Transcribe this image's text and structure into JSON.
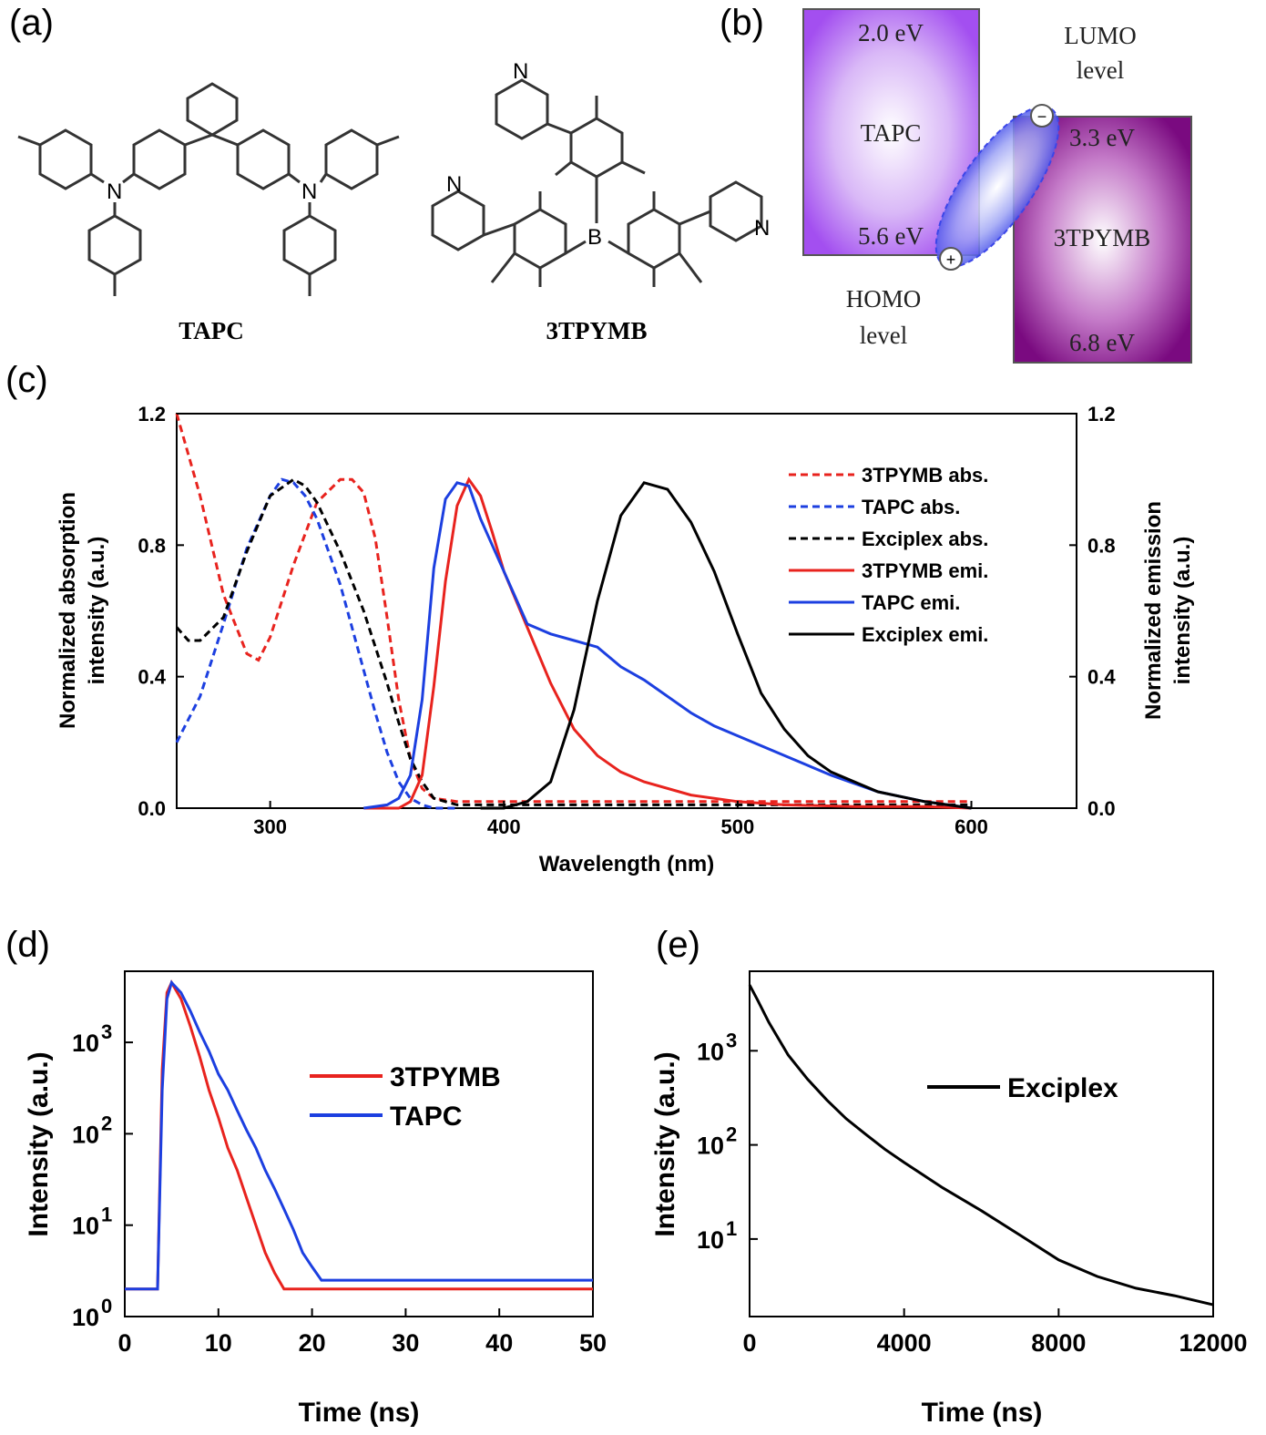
{
  "panels": {
    "a": "(a)",
    "b": "(b)",
    "c": "(c)",
    "d": "(d)",
    "e": "(e)"
  },
  "panel_a": {
    "molecules": [
      "TAPC",
      "3TPYMB"
    ],
    "atoms": {
      "n": "N",
      "b": "B"
    }
  },
  "panel_b": {
    "lumo_label": [
      "LUMO",
      "level"
    ],
    "homo_label": [
      "HOMO",
      "level"
    ],
    "tapc": {
      "name": "TAPC",
      "lumo": "2.0 eV",
      "homo": "5.6 eV"
    },
    "tpymb": {
      "name": "3TPYMB",
      "lumo": "3.3 eV",
      "homo": "6.8 eV"
    },
    "charges": {
      "plus": "+",
      "minus": "−"
    },
    "colors": {
      "tapc": "#a34ff0",
      "tpymb": "#7a0a80",
      "exciplex": "#3b46e8"
    }
  },
  "chart_data": [
    {
      "type": "line",
      "panel": "c",
      "xlabel": "Wavelength (nm)",
      "ylabel_left": [
        "Normalized absorption",
        "intensity (a.u.)"
      ],
      "ylabel_right": [
        "Normalized emission",
        "intensity (a.u.)"
      ],
      "xlim": [
        260,
        645
      ],
      "ylim": [
        0,
        1.2
      ],
      "xticks": [
        "300",
        "400",
        "500",
        "600"
      ],
      "yticks": [
        "0.0",
        "0.4",
        "0.8",
        "1.2"
      ],
      "legend_position": "top-right",
      "series": [
        {
          "name": "3TPYMB abs.",
          "color": "#e8231e",
          "dash": true,
          "x": [
            260,
            270,
            280,
            290,
            295,
            300,
            310,
            320,
            330,
            335,
            340,
            345,
            350,
            355,
            360,
            365,
            370,
            380,
            400,
            500,
            600
          ],
          "y": [
            1.2,
            0.95,
            0.65,
            0.47,
            0.45,
            0.52,
            0.74,
            0.93,
            1.0,
            1.0,
            0.96,
            0.82,
            0.58,
            0.33,
            0.15,
            0.06,
            0.03,
            0.02,
            0.02,
            0.02,
            0.02
          ]
        },
        {
          "name": "TAPC abs.",
          "color": "#1c3fe0",
          "dash": true,
          "x": [
            260,
            270,
            280,
            290,
            300,
            305,
            310,
            315,
            320,
            330,
            340,
            345,
            350,
            355,
            360,
            365,
            370,
            380
          ],
          "y": [
            0.2,
            0.34,
            0.56,
            0.79,
            0.95,
            1.0,
            0.99,
            0.95,
            0.88,
            0.68,
            0.42,
            0.29,
            0.17,
            0.08,
            0.03,
            0.01,
            0.0,
            0.0
          ]
        },
        {
          "name": "Exciplex abs.",
          "color": "#000000",
          "dash": true,
          "x": [
            260,
            265,
            270,
            280,
            290,
            300,
            310,
            315,
            320,
            330,
            340,
            350,
            355,
            360,
            365,
            370,
            380,
            400,
            500,
            600
          ],
          "y": [
            0.55,
            0.51,
            0.51,
            0.58,
            0.78,
            0.95,
            1.0,
            0.98,
            0.93,
            0.78,
            0.6,
            0.38,
            0.26,
            0.15,
            0.08,
            0.03,
            0.01,
            0.01,
            0.01,
            0.01
          ]
        },
        {
          "name": "3TPYMB emi.",
          "color": "#e8231e",
          "dash": false,
          "x": [
            340,
            355,
            360,
            365,
            370,
            375,
            380,
            385,
            390,
            395,
            400,
            410,
            420,
            430,
            440,
            450,
            460,
            480,
            500,
            520,
            550,
            580,
            600
          ],
          "y": [
            0.0,
            0.0,
            0.02,
            0.1,
            0.37,
            0.69,
            0.92,
            1.0,
            0.95,
            0.84,
            0.72,
            0.55,
            0.38,
            0.24,
            0.16,
            0.11,
            0.08,
            0.04,
            0.02,
            0.01,
            0.005,
            0.005,
            0.0
          ]
        },
        {
          "name": "TAPC emi.",
          "color": "#1c3fe0",
          "dash": false,
          "x": [
            340,
            350,
            355,
            360,
            365,
            370,
            375,
            380,
            385,
            390,
            400,
            410,
            420,
            430,
            440,
            450,
            460,
            470,
            480,
            490,
            500,
            520,
            540,
            560,
            580,
            600
          ],
          "y": [
            0.0,
            0.01,
            0.03,
            0.1,
            0.33,
            0.73,
            0.94,
            0.99,
            0.98,
            0.88,
            0.72,
            0.56,
            0.53,
            0.51,
            0.49,
            0.43,
            0.39,
            0.34,
            0.29,
            0.25,
            0.22,
            0.16,
            0.1,
            0.05,
            0.02,
            0.0
          ]
        },
        {
          "name": "Exciplex emi.",
          "color": "#000000",
          "dash": false,
          "x": [
            390,
            400,
            410,
            420,
            430,
            440,
            450,
            460,
            470,
            480,
            490,
            500,
            510,
            520,
            530,
            540,
            560,
            580,
            600
          ],
          "y": [
            0.0,
            0.0,
            0.02,
            0.08,
            0.3,
            0.63,
            0.89,
            0.99,
            0.97,
            0.87,
            0.72,
            0.53,
            0.35,
            0.24,
            0.16,
            0.11,
            0.05,
            0.02,
            0.0
          ]
        }
      ]
    },
    {
      "type": "line",
      "panel": "d",
      "xlabel": "Time (ns)",
      "ylabel": "Intensity (a.u.)",
      "xlim": [
        0,
        50
      ],
      "ylim": [
        1,
        6000
      ],
      "yscale": "log",
      "xticks": [
        "0",
        "10",
        "20",
        "30",
        "40",
        "50"
      ],
      "yticks": [
        "10",
        "10",
        "10",
        "10"
      ],
      "ytick_exponents": [
        "0",
        "1",
        "2",
        "3"
      ],
      "legend_position": "middle-right",
      "series": [
        {
          "name": "3TPYMB",
          "color": "#e8231e",
          "x": [
            0,
            2,
            3.5,
            4,
            4.5,
            5,
            6,
            7,
            8,
            9,
            10,
            11,
            12,
            13,
            14,
            15,
            16,
            17,
            18,
            20,
            25,
            30,
            35,
            40,
            45,
            50
          ],
          "y": [
            2,
            2,
            2,
            500,
            3500,
            4500,
            3000,
            1500,
            700,
            300,
            150,
            70,
            40,
            20,
            10,
            5,
            3,
            2,
            2,
            2,
            2,
            2,
            2,
            2,
            2,
            2
          ]
        },
        {
          "name": "TAPC",
          "color": "#1c3fe0",
          "x": [
            0,
            2,
            3.5,
            4,
            4.5,
            5,
            6,
            7,
            8,
            9,
            10,
            11,
            12,
            13,
            14,
            15,
            16,
            17,
            18,
            19,
            20,
            21,
            25,
            30,
            35,
            40,
            45,
            50
          ],
          "y": [
            2,
            2,
            2,
            300,
            3000,
            4500,
            3500,
            2200,
            1300,
            800,
            450,
            300,
            180,
            110,
            70,
            40,
            25,
            15,
            9,
            5,
            3.5,
            2.5,
            2.5,
            2.5,
            2.5,
            2.5,
            2.5,
            2.5
          ]
        }
      ]
    },
    {
      "type": "line",
      "panel": "e",
      "xlabel": "Time (ns)",
      "ylabel": "Intensity (a.u.)",
      "xlim": [
        0,
        12000
      ],
      "ylim": [
        1.5,
        7000
      ],
      "yscale": "log",
      "xticks": [
        "0",
        "4000",
        "8000",
        "12000"
      ],
      "yticks": [
        "10",
        "10",
        "10"
      ],
      "ytick_exponents": [
        "1",
        "2",
        "3"
      ],
      "legend_position": "top-right",
      "series": [
        {
          "name": "Exciplex",
          "color": "#000000",
          "x": [
            0,
            200,
            500,
            1000,
            1500,
            2000,
            2500,
            3000,
            3500,
            4000,
            5000,
            6000,
            7000,
            8000,
            9000,
            10000,
            11000,
            12000
          ],
          "y": [
            5000,
            3500,
            2000,
            900,
            500,
            300,
            190,
            130,
            90,
            65,
            35,
            20,
            11,
            6,
            4,
            3,
            2.5,
            2
          ]
        }
      ]
    }
  ]
}
